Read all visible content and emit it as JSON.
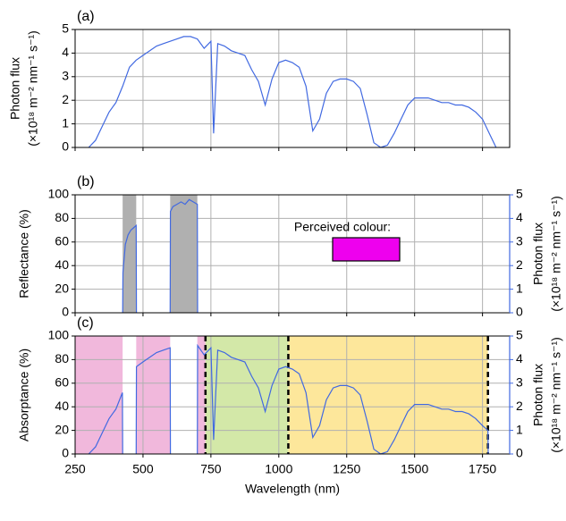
{
  "chart_data": [
    {
      "type": "line",
      "panel_label": "(a)",
      "ylabel": [
        "Photon flux",
        "(×10¹⁸ m⁻² nm⁻¹ s⁻¹)"
      ],
      "xlim": [
        250,
        1850
      ],
      "xticks": [
        250,
        500,
        750,
        1000,
        1250,
        1500,
        1750
      ],
      "xtick_labels": false,
      "ylim": [
        0,
        5
      ],
      "yticks": [
        0,
        1,
        2,
        3,
        4,
        5
      ],
      "grid": true,
      "series": [
        {
          "color": "#4169e1",
          "x": [
            300,
            325,
            350,
            375,
            400,
            425,
            450,
            475,
            500,
            525,
            550,
            575,
            600,
            625,
            650,
            675,
            700,
            725,
            750,
            760,
            775,
            800,
            825,
            850,
            875,
            900,
            925,
            950,
            975,
            1000,
            1025,
            1050,
            1075,
            1100,
            1125,
            1150,
            1175,
            1200,
            1225,
            1250,
            1275,
            1300,
            1325,
            1350,
            1375,
            1400,
            1425,
            1450,
            1475,
            1500,
            1525,
            1550,
            1575,
            1600,
            1625,
            1650,
            1675,
            1700,
            1725,
            1750,
            1775,
            1800
          ],
          "values": [
            0,
            0.3,
            0.9,
            1.5,
            1.9,
            2.6,
            3.4,
            3.7,
            3.9,
            4.1,
            4.3,
            4.4,
            4.5,
            4.6,
            4.7,
            4.7,
            4.6,
            4.2,
            4.5,
            0.6,
            4.4,
            4.3,
            4.1,
            4.0,
            3.9,
            3.3,
            2.8,
            1.8,
            2.9,
            3.6,
            3.7,
            3.6,
            3.4,
            2.6,
            0.7,
            1.2,
            2.3,
            2.8,
            2.9,
            2.9,
            2.8,
            2.5,
            1.4,
            0.2,
            0,
            0.1,
            0.6,
            1.2,
            1.8,
            2.1,
            2.1,
            2.1,
            2.0,
            1.9,
            1.9,
            1.8,
            1.8,
            1.7,
            1.5,
            1.2,
            0.6,
            0
          ]
        }
      ]
    },
    {
      "type": "line",
      "panel_label": "(b)",
      "ylabel": [
        "Reflectance (%)"
      ],
      "xlim": [
        250,
        1850
      ],
      "xticks": [
        250,
        500,
        750,
        1000,
        1250,
        1500,
        1750
      ],
      "xtick_labels": false,
      "ylim": [
        0,
        100
      ],
      "yticks": [
        0,
        20,
        40,
        60,
        80,
        100
      ],
      "grid": true,
      "y2label": [
        "Photon flux",
        "(×10¹⁸ m⁻² nm⁻¹ s⁻¹)"
      ],
      "y2lim": [
        0,
        5
      ],
      "y2ticks": [
        0,
        1,
        2,
        3,
        4,
        5
      ],
      "y2color": "#4169e1",
      "bands": [
        {
          "start": 425,
          "end": 475,
          "value": 100,
          "color": "#b0b0b0"
        },
        {
          "start": 600,
          "end": 700,
          "value": 100,
          "color": "#b0b0b0"
        }
      ],
      "annotation": "Perceived colour:",
      "swatch_color": "#ee00ee",
      "series": [
        {
          "color": "#4169e1",
          "axis": "y2",
          "x": [
            425,
            426,
            435,
            445,
            455,
            465,
            475,
            476,
            550,
            600,
            601,
            610,
            625,
            640,
            655,
            670,
            685,
            700,
            701
          ],
          "values": [
            0,
            1.7,
            2.9,
            3.3,
            3.5,
            3.6,
            3.7,
            0,
            null,
            0,
            4.3,
            4.5,
            4.6,
            4.7,
            4.6,
            4.8,
            4.7,
            4.6,
            0
          ]
        }
      ]
    },
    {
      "type": "line",
      "panel_label": "(c)",
      "ylabel": [
        "Absorptance (%)"
      ],
      "xlabel": "Wavelength (nm)",
      "xlim": [
        250,
        1850
      ],
      "xticks": [
        250,
        500,
        750,
        1000,
        1250,
        1500,
        1750
      ],
      "xtick_labels": true,
      "ylim": [
        0,
        100
      ],
      "yticks": [
        0,
        20,
        40,
        60,
        80,
        100
      ],
      "grid": true,
      "y2label": [
        "Photon flux",
        "(×10¹⁸ m⁻² nm⁻¹ s⁻¹)"
      ],
      "y2lim": [
        0,
        5
      ],
      "y2ticks": [
        0,
        1,
        2,
        3,
        4,
        5
      ],
      "y2color": "#4169e1",
      "bands": [
        {
          "start": 250,
          "end": 425,
          "value": 100,
          "color": "#f1b8dc"
        },
        {
          "start": 475,
          "end": 600,
          "value": 100,
          "color": "#f1b8dc"
        },
        {
          "start": 700,
          "end": 730,
          "value": 100,
          "color": "#f1b8dc"
        },
        {
          "start": 730,
          "end": 1035,
          "value": 100,
          "color": "#d3e8a8"
        },
        {
          "start": 1035,
          "end": 1770,
          "value": 100,
          "color": "#fde79b"
        }
      ],
      "vlines": [
        730,
        1035,
        1770
      ],
      "series": [
        {
          "color": "#4169e1",
          "axis": "y2",
          "x": [
            300,
            325,
            350,
            375,
            400,
            424,
            425,
            450,
            475,
            476,
            500,
            525,
            550,
            575,
            600,
            601,
            650,
            700,
            701,
            725,
            750,
            760,
            775,
            800,
            825,
            850,
            875,
            900,
            925,
            950,
            975,
            1000,
            1025,
            1050,
            1075,
            1100,
            1125,
            1150,
            1175,
            1200,
            1225,
            1250,
            1275,
            1300,
            1325,
            1350,
            1375,
            1400,
            1425,
            1450,
            1475,
            1500,
            1525,
            1550,
            1575,
            1600,
            1625,
            1650,
            1675,
            1700,
            1725,
            1750,
            1770,
            1771
          ],
          "values": [
            0,
            0.3,
            0.9,
            1.5,
            1.9,
            2.6,
            0,
            null,
            0,
            3.7,
            3.9,
            4.1,
            4.3,
            4.4,
            4.5,
            0,
            null,
            0,
            4.6,
            4.2,
            4.5,
            0.6,
            4.4,
            4.3,
            4.1,
            4.0,
            3.9,
            3.3,
            2.8,
            1.8,
            2.9,
            3.6,
            3.7,
            3.6,
            3.4,
            2.6,
            0.7,
            1.2,
            2.3,
            2.8,
            2.9,
            2.9,
            2.8,
            2.5,
            1.4,
            0.2,
            0,
            0.1,
            0.6,
            1.2,
            1.8,
            2.1,
            2.1,
            2.1,
            2.0,
            1.9,
            1.9,
            1.8,
            1.8,
            1.7,
            1.5,
            1.2,
            1.0,
            0
          ]
        }
      ]
    }
  ]
}
